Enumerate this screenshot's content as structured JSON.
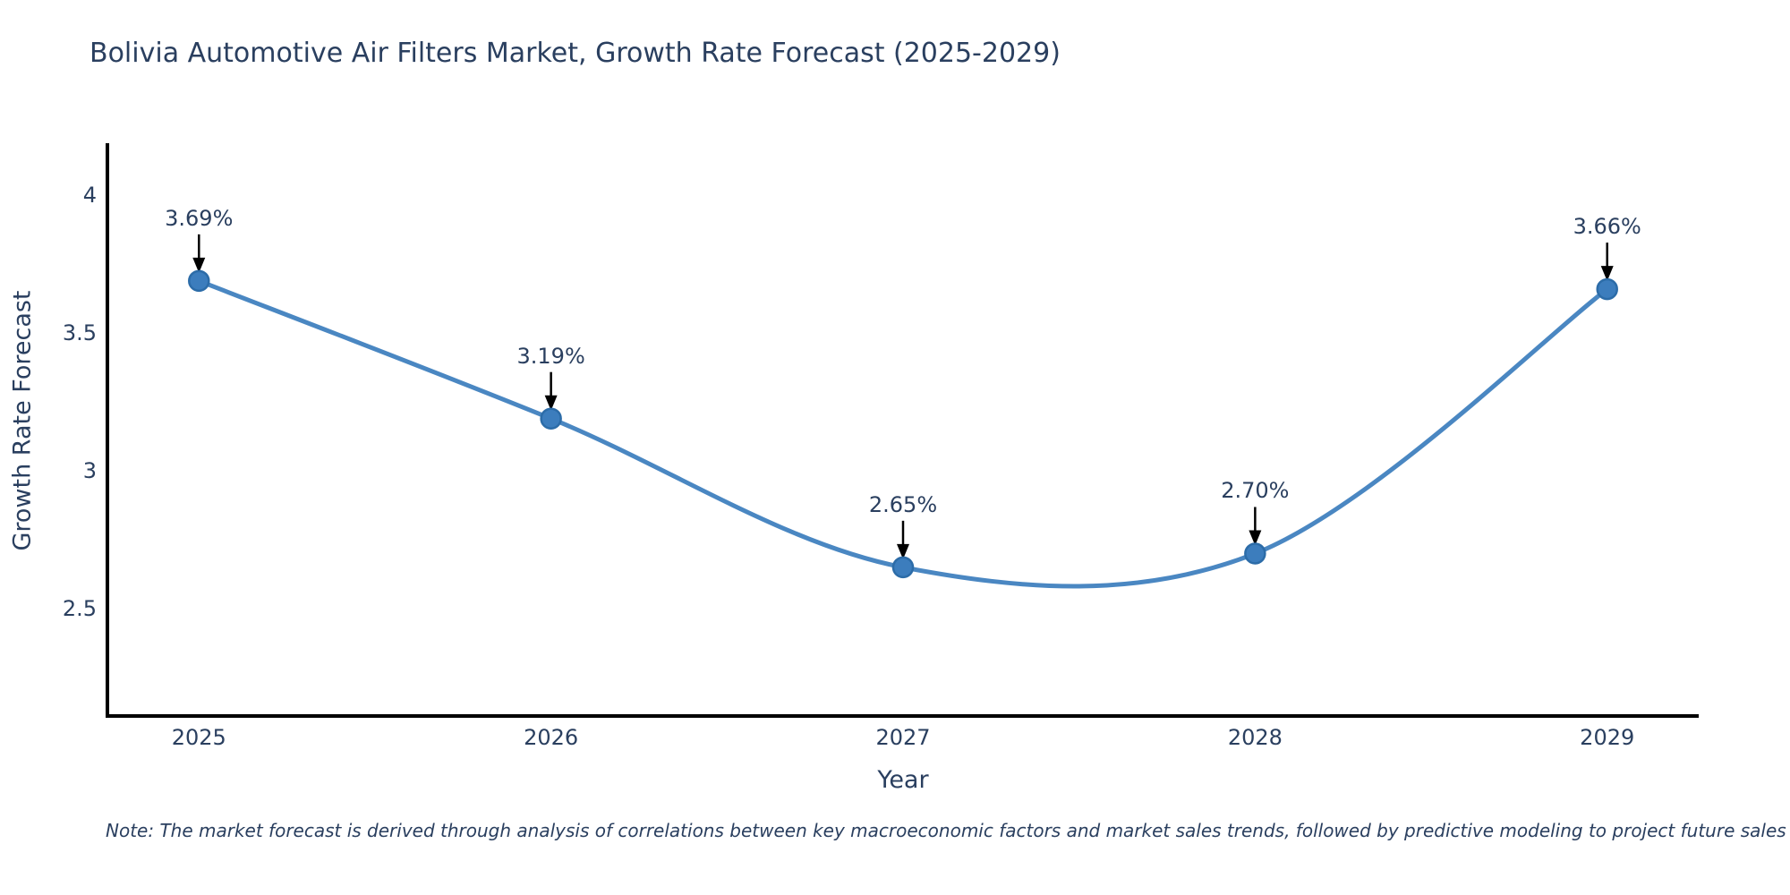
{
  "note": "Note: The market forecast is derived through analysis of correlations between key macroeconomic factors and market sales trends, followed by predictive modeling to project future sales",
  "chart_data": {
    "type": "line",
    "title": "Bolivia Automotive Air Filters Market, Growth Rate Forecast (2025-2029)",
    "xlabel": "Year",
    "ylabel": "Growth Rate Forecast",
    "x": [
      2025,
      2026,
      2027,
      2028,
      2029
    ],
    "y": [
      3.69,
      3.19,
      2.65,
      2.7,
      3.66
    ],
    "point_labels": [
      "3.69%",
      "3.19%",
      "2.65%",
      "2.70%",
      "3.66%"
    ],
    "xticks": [
      2025,
      2026,
      2027,
      2028,
      2029
    ],
    "xtick_labels": [
      "2025",
      "2026",
      "2027",
      "2028",
      "2029"
    ],
    "yticks": [
      2.5,
      3,
      3.5,
      4
    ],
    "ytick_labels": [
      "2.5",
      "3",
      "3.5",
      "4"
    ],
    "xlim": [
      2024.74,
      2029.26
    ],
    "ylim": [
      2.11,
      4.19
    ],
    "grid": false,
    "legend": "none",
    "line_shape": "spline",
    "colors": {
      "line": "#4a87c2",
      "marker_fill": "#3c7dbd",
      "marker_stroke": "#2c6ca8",
      "axis": "#000000",
      "text": "#2a3f5f",
      "annotation_arrow": "#000000"
    }
  }
}
